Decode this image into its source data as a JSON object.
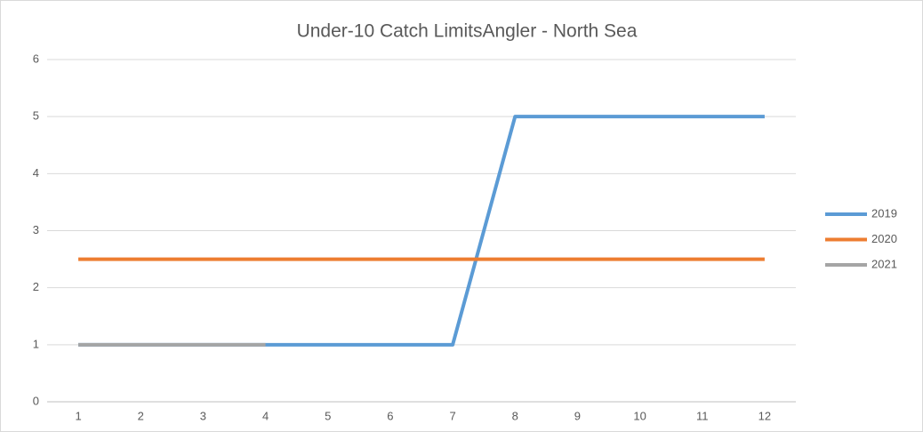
{
  "chart_data": {
    "type": "line",
    "title": "Under-10 Catch LimitsAngler - North Sea",
    "categories": [
      "1",
      "2",
      "3",
      "4",
      "5",
      "6",
      "7",
      "8",
      "9",
      "10",
      "11",
      "12"
    ],
    "series": [
      {
        "name": "2019",
        "color": "#5b9bd5",
        "values": [
          1,
          1,
          1,
          1,
          1,
          1,
          1,
          5,
          5,
          5,
          5,
          5
        ]
      },
      {
        "name": "2020",
        "color": "#ed7d31",
        "values": [
          2.5,
          2.5,
          2.5,
          2.5,
          2.5,
          2.5,
          2.5,
          2.5,
          2.5,
          2.5,
          2.5,
          2.5
        ]
      },
      {
        "name": "2021",
        "color": "#a5a5a5",
        "values": [
          1,
          1,
          1,
          1,
          null,
          null,
          null,
          null,
          null,
          null,
          null,
          null
        ]
      }
    ],
    "ylim": [
      0,
      6
    ],
    "yticks": [
      0,
      1,
      2,
      3,
      4,
      5,
      6
    ],
    "grid": true,
    "legend": "right"
  }
}
